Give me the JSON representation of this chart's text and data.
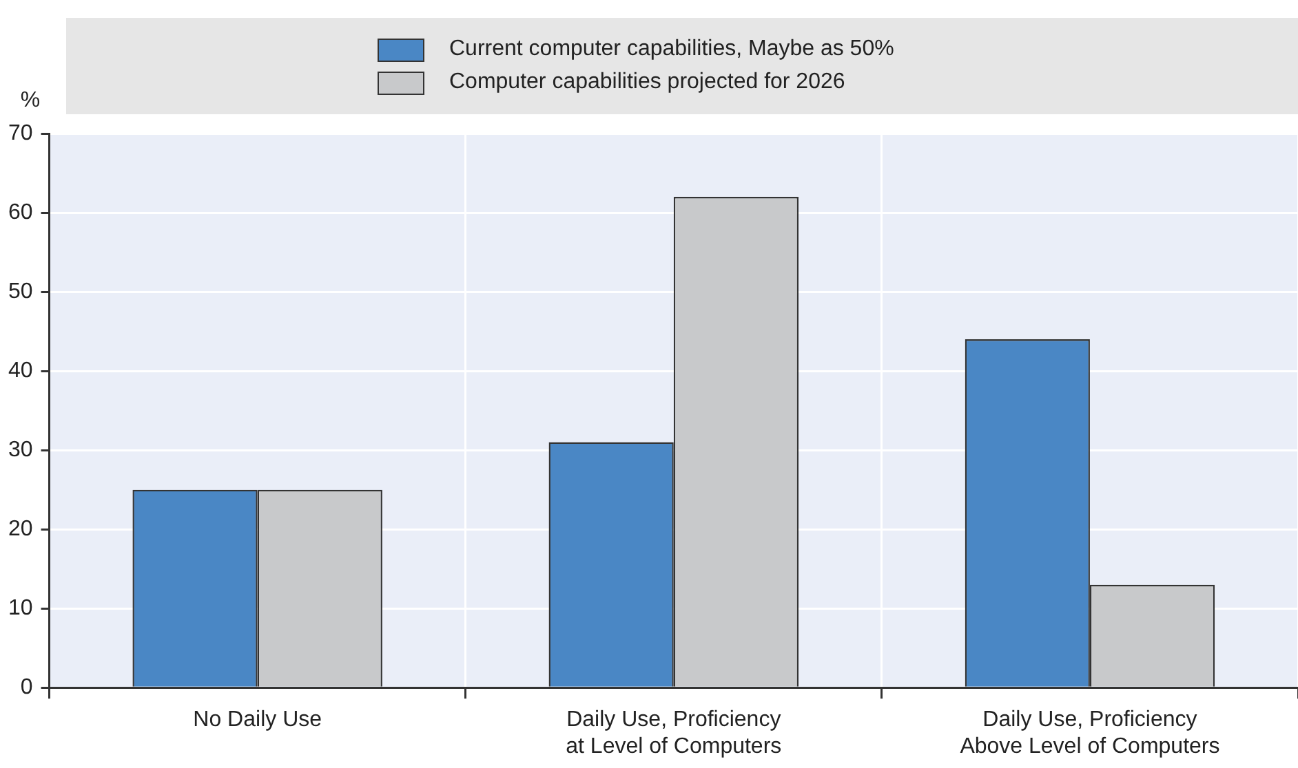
{
  "chart_data": {
    "type": "bar",
    "ylabel": "%",
    "categories": [
      "No Daily Use",
      "Daily Use, Proficiency at Level of Computers",
      "Daily Use, Proficiency Above Level of Computers"
    ],
    "series": [
      {
        "name": "Current computer capabilities, Maybe as 50%",
        "color": "#4a87c5",
        "values": [
          25,
          31,
          44
        ]
      },
      {
        "name": "Computer capabilities projected for 2026",
        "color": "#c8c9cb",
        "values": [
          25,
          62,
          13
        ]
      }
    ],
    "ylim": [
      0,
      70
    ],
    "yticks": [
      0,
      10,
      20,
      30,
      40,
      50,
      60,
      70
    ],
    "grid": true,
    "legend": "top"
  }
}
